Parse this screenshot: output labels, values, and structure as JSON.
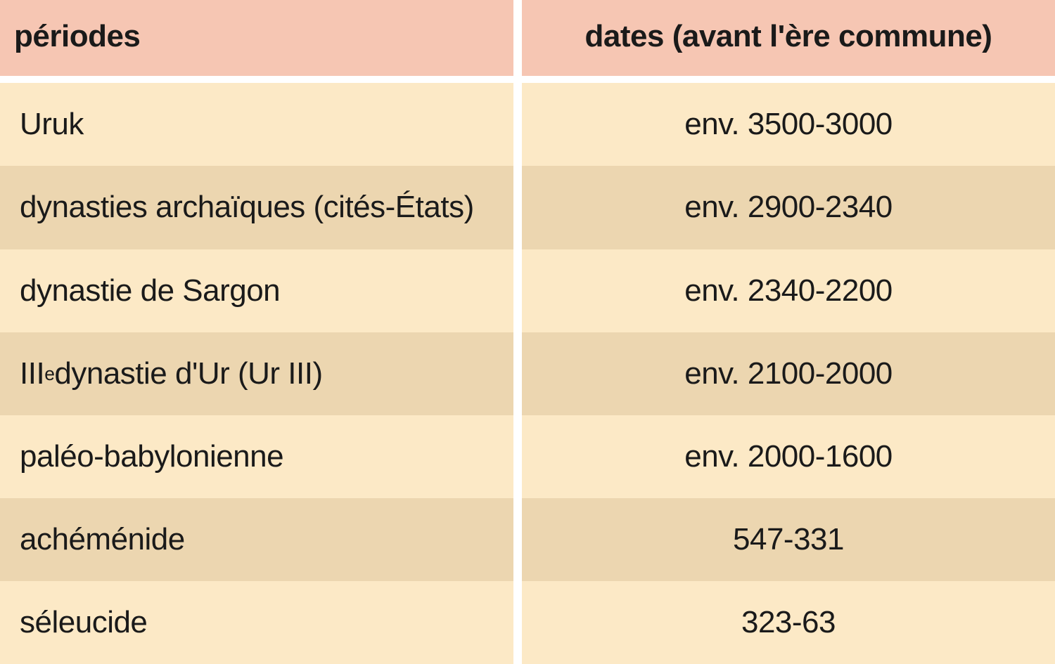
{
  "table": {
    "columns": [
      {
        "label": "périodes",
        "align": "left"
      },
      {
        "label": "dates (avant l'ère commune)",
        "align": "center"
      }
    ],
    "header_bg": "#f6c6b3",
    "row_bg_odd": "#fce9c6",
    "row_bg_even": "#ecd6b0",
    "text_color": "#1a1a1a",
    "header_fontsize": 44,
    "body_fontsize": 44,
    "separator_color": "#ffffff",
    "separator_width": 12,
    "col_left_width": 730,
    "rows": [
      {
        "period": "Uruk",
        "dates": "env. 3500-3000"
      },
      {
        "period": "dynasties archaïques (cités-États)",
        "dates": "env. 2900-2340"
      },
      {
        "period": "dynastie de Sargon",
        "dates": "env. 2340-2200"
      },
      {
        "period_html": "III<sup>e</sup> dynastie d'Ur (Ur III)",
        "period": "IIIe dynastie d'Ur (Ur III)",
        "dates": "env. 2100-2000"
      },
      {
        "period": "paléo-babylonienne",
        "dates": "env. 2000-1600"
      },
      {
        "period": "achéménide",
        "dates": "547-331"
      },
      {
        "period": "séleucide",
        "dates": "323-63"
      }
    ]
  }
}
